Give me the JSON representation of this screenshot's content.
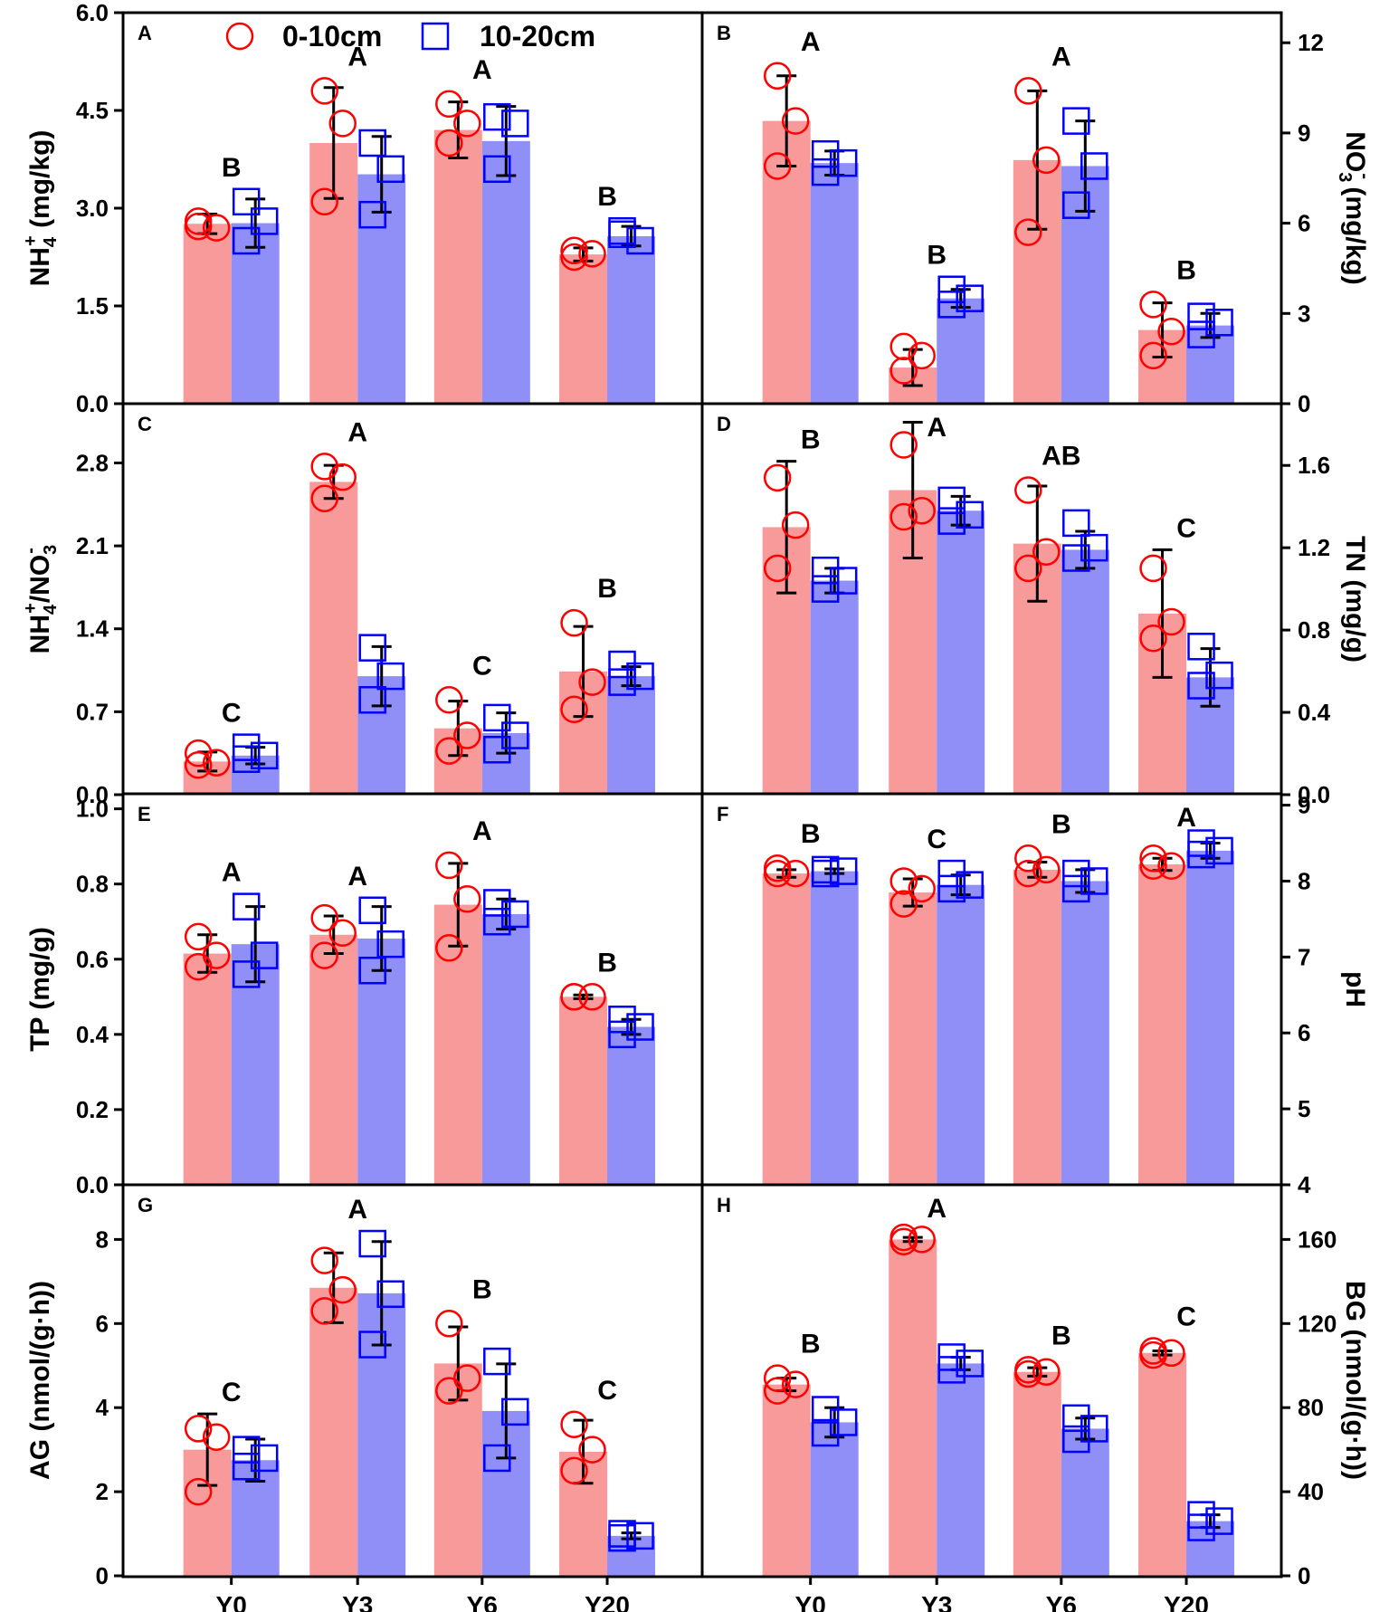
{
  "colors": {
    "bar_0_10": "#f99a9a",
    "bar_10_20": "#8f8ff7",
    "marker_0_10": "#ff0000",
    "marker_10_20": "#0000ff",
    "errorbar": "#000000"
  },
  "legend": {
    "series_0_10": "0-10cm",
    "series_10_20": "10-20cm"
  },
  "chart_data": [
    {
      "panel": "A",
      "type": "bar",
      "axis_side": "left",
      "ylabel_main": "NH",
      "ylabel_sup": "+",
      "ylabel_sub": "4",
      "ylabel_tail": " (mg/kg)",
      "categories": [
        "Y0",
        "Y3",
        "Y6",
        "Y20"
      ],
      "ylim": [
        0,
        6.0
      ],
      "ticks": [
        "0.0",
        "1.5",
        "3.0",
        "4.5",
        "6.0"
      ],
      "series": [
        {
          "name": "0-10cm",
          "values": [
            2.76,
            4.0,
            4.2,
            2.29
          ],
          "err": [
            0.15,
            0.85,
            0.43,
            0.1
          ],
          "points": [
            [
              2.8,
              2.7,
              2.72
            ],
            [
              4.8,
              4.3,
              3.1
            ],
            [
              4.6,
              4.3,
              4.0
            ],
            [
              2.25,
              2.3,
              2.35
            ]
          ]
        },
        {
          "name": "10-20cm",
          "values": [
            2.77,
            3.52,
            4.03,
            2.57
          ],
          "err": [
            0.37,
            0.58,
            0.53,
            0.15
          ],
          "points": [
            [
              3.1,
              2.8,
              2.5
            ],
            [
              4.0,
              3.6,
              2.9
            ],
            [
              4.4,
              4.3,
              3.6
            ],
            [
              2.6,
              2.5,
              2.65
            ]
          ]
        }
      ],
      "labels": [
        "B",
        "A",
        "A",
        "B"
      ]
    },
    {
      "panel": "B",
      "type": "bar",
      "axis_side": "right",
      "ylabel_main": "NO",
      "ylabel_sup": "-",
      "ylabel_sub": "3",
      "ylabel_tail": " (mg/kg)",
      "categories": [
        "Y0",
        "Y3",
        "Y6",
        "Y20"
      ],
      "ylim": [
        0,
        13.0
      ],
      "ticks": [
        "0",
        "3",
        "6",
        "9",
        "12"
      ],
      "series": [
        {
          "name": "0-10cm",
          "values": [
            9.4,
            1.2,
            8.1,
            2.45
          ],
          "err": [
            1.5,
            0.6,
            2.3,
            0.9
          ],
          "points": [
            [
              10.9,
              9.4,
              7.9
            ],
            [
              1.9,
              1.6,
              1.1
            ],
            [
              10.4,
              8.1,
              5.7
            ],
            [
              3.3,
              2.4,
              1.6
            ]
          ]
        },
        {
          "name": "10-20cm",
          "values": [
            8.0,
            3.5,
            7.9,
            2.6
          ],
          "err": [
            0.4,
            0.3,
            1.5,
            0.4
          ],
          "points": [
            [
              8.3,
              8.0,
              7.7
            ],
            [
              3.8,
              3.5,
              3.3
            ],
            [
              9.4,
              7.9,
              6.6
            ],
            [
              2.9,
              2.7,
              2.3
            ]
          ]
        }
      ],
      "labels": [
        "A",
        "B",
        "A",
        "B"
      ]
    },
    {
      "panel": "C",
      "type": "bar",
      "axis_side": "left",
      "ylabel_main": "NH",
      "ylabel_sup": "+",
      "ylabel_sub": "4",
      "ylabel_tail": "/NO",
      "ylabel_sub2": "3",
      "ylabel_sup2": "-",
      "categories": [
        "Y0",
        "Y3",
        "Y6",
        "Y20"
      ],
      "ylim": [
        0,
        3.3
      ],
      "ticks": [
        "0.0",
        "0.7",
        "1.4",
        "2.1",
        "2.8"
      ],
      "series": [
        {
          "name": "0-10cm",
          "values": [
            0.28,
            2.64,
            0.56,
            1.04
          ],
          "err": [
            0.08,
            0.14,
            0.23,
            0.38
          ],
          "points": [
            [
              0.35,
              0.27,
              0.25
            ],
            [
              2.77,
              2.68,
              2.5
            ],
            [
              0.8,
              0.5,
              0.37
            ],
            [
              1.45,
              0.95,
              0.72
            ]
          ]
        },
        {
          "name": "10-20cm",
          "values": [
            0.33,
            1.0,
            0.52,
            1.0
          ],
          "err": [
            0.07,
            0.25,
            0.17,
            0.08
          ],
          "points": [
            [
              0.4,
              0.33,
              0.3
            ],
            [
              1.24,
              1.0,
              0.8
            ],
            [
              0.65,
              0.5,
              0.38
            ],
            [
              1.1,
              1.0,
              0.95
            ]
          ]
        }
      ],
      "labels": [
        "C",
        "A",
        "C",
        "B"
      ]
    },
    {
      "panel": "D",
      "type": "bar",
      "axis_side": "right",
      "ylabel_main": "TN (mg/g)",
      "categories": [
        "Y0",
        "Y3",
        "Y6",
        "Y20"
      ],
      "ylim": [
        0,
        1.9
      ],
      "ticks": [
        "0.0",
        "0.4",
        "0.8",
        "1.2",
        "1.6"
      ],
      "series": [
        {
          "name": "0-10cm",
          "values": [
            1.3,
            1.48,
            1.22,
            0.88
          ],
          "err": [
            0.32,
            0.33,
            0.28,
            0.31
          ],
          "points": [
            [
              1.54,
              1.31,
              1.1
            ],
            [
              1.7,
              1.38,
              1.35
            ],
            [
              1.48,
              1.18,
              1.1
            ],
            [
              1.1,
              0.84,
              0.76
            ]
          ]
        },
        {
          "name": "10-20cm",
          "values": [
            1.04,
            1.38,
            1.19,
            0.57
          ],
          "err": [
            0.06,
            0.07,
            0.09,
            0.14
          ],
          "points": [
            [
              1.09,
              1.04,
              1.0
            ],
            [
              1.43,
              1.36,
              1.33
            ],
            [
              1.32,
              1.2,
              1.15
            ],
            [
              0.72,
              0.58,
              0.53
            ]
          ]
        }
      ],
      "labels": [
        "B",
        "A",
        "AB",
        "C"
      ]
    },
    {
      "panel": "E",
      "type": "bar",
      "axis_side": "left",
      "ylabel_main": "TP (mg/g)",
      "categories": [
        "Y0",
        "Y3",
        "Y6",
        "Y20"
      ],
      "ylim": [
        0,
        1.04
      ],
      "ticks": [
        "0.0",
        "0.2",
        "0.4",
        "0.6",
        "0.8",
        "1.0"
      ],
      "series": [
        {
          "name": "0-10cm",
          "values": [
            0.615,
            0.665,
            0.745,
            0.5
          ],
          "err": [
            0.05,
            0.05,
            0.11,
            0.005
          ],
          "points": [
            [
              0.66,
              0.61,
              0.58
            ],
            [
              0.71,
              0.67,
              0.61
            ],
            [
              0.85,
              0.76,
              0.63
            ],
            [
              0.5,
              0.5,
              0.5
            ]
          ]
        },
        {
          "name": "10-20cm",
          "values": [
            0.64,
            0.655,
            0.72,
            0.42
          ],
          "err": [
            0.1,
            0.085,
            0.04,
            0.02
          ],
          "points": [
            [
              0.74,
              0.61,
              0.56
            ],
            [
              0.73,
              0.64,
              0.57
            ],
            [
              0.75,
              0.72,
              0.7
            ],
            [
              0.44,
              0.42,
              0.4
            ]
          ]
        }
      ],
      "labels": [
        "A",
        "A",
        "A",
        "B"
      ]
    },
    {
      "panel": "F",
      "type": "bar",
      "axis_side": "right",
      "ylabel_main": "pH",
      "categories": [
        "Y0",
        "Y3",
        "Y6",
        "Y20"
      ],
      "ylim": [
        4,
        9.15
      ],
      "ticks": [
        "4",
        "5",
        "6",
        "7",
        "8",
        "9"
      ],
      "series": [
        {
          "name": "0-10cm",
          "values": [
            8.1,
            7.85,
            8.15,
            8.22
          ],
          "err": [
            0.05,
            0.18,
            0.1,
            0.08
          ],
          "points": [
            [
              8.17,
              8.1,
              8.1
            ],
            [
              8.0,
              7.9,
              7.7
            ],
            [
              8.3,
              8.15,
              8.1
            ],
            [
              8.3,
              8.2,
              8.2
            ]
          ]
        },
        {
          "name": "10-20cm",
          "values": [
            8.13,
            7.95,
            8.0,
            8.4
          ],
          "err": [
            0.03,
            0.13,
            0.15,
            0.1
          ],
          "points": [
            [
              8.15,
              8.13,
              8.1
            ],
            [
              8.1,
              7.95,
              7.9
            ],
            [
              8.1,
              8.0,
              7.9
            ],
            [
              8.5,
              8.4,
              8.35
            ]
          ]
        }
      ],
      "labels": [
        "B",
        "C",
        "B",
        "A"
      ]
    },
    {
      "panel": "G",
      "type": "bar",
      "axis_side": "left",
      "ylabel_main": "AG (nmol/(g·h))",
      "categories": [
        "Y0",
        "Y3",
        "Y6",
        "Y20"
      ],
      "ylim": [
        0,
        9.3
      ],
      "ticks": [
        "0",
        "2",
        "4",
        "6",
        "8"
      ],
      "series": [
        {
          "name": "0-10cm",
          "values": [
            3.0,
            6.85,
            5.05,
            2.95
          ],
          "err": [
            0.85,
            0.83,
            0.87,
            0.75
          ],
          "points": [
            [
              3.5,
              3.3,
              2.0
            ],
            [
              7.5,
              6.8,
              6.3
            ],
            [
              6.0,
              4.7,
              4.4
            ],
            [
              3.6,
              3.0,
              2.5
            ]
          ]
        },
        {
          "name": "10-20cm",
          "values": [
            2.75,
            6.72,
            3.92,
            0.95
          ],
          "err": [
            0.5,
            1.23,
            1.12,
            0.07
          ],
          "points": [
            [
              3.0,
              2.8,
              2.6
            ],
            [
              7.9,
              6.7,
              5.5
            ],
            [
              5.1,
              3.9,
              2.8
            ],
            [
              1.0,
              0.95,
              0.9
            ]
          ]
        }
      ],
      "labels": [
        "C",
        "A",
        "B",
        "C"
      ]
    },
    {
      "panel": "H",
      "type": "bar",
      "axis_side": "right",
      "ylabel_main": "BG (nmol/(g·h))",
      "categories": [
        "Y0",
        "Y3",
        "Y6",
        "Y20"
      ],
      "ylim": [
        0,
        186
      ],
      "ticks": [
        "0",
        "40",
        "80",
        "120",
        "160"
      ],
      "series": [
        {
          "name": "0-10cm",
          "values": [
            91,
            160,
            97,
            106
          ],
          "err": [
            3,
            1,
            2,
            1
          ],
          "points": [
            [
              94,
              91,
              88
            ],
            [
              161,
              160,
              159
            ],
            [
              98,
              97,
              96
            ],
            [
              107,
              106,
              105
            ]
          ]
        },
        {
          "name": "10-20cm",
          "values": [
            73,
            101,
            70,
            26
          ],
          "err": [
            7,
            3,
            5,
            3
          ],
          "points": [
            [
              79,
              73,
              68
            ],
            [
              104,
              101,
              98
            ],
            [
              75,
              70,
              65
            ],
            [
              29,
              26,
              23
            ]
          ]
        }
      ],
      "labels": [
        "B",
        "A",
        "B",
        "C"
      ]
    }
  ]
}
